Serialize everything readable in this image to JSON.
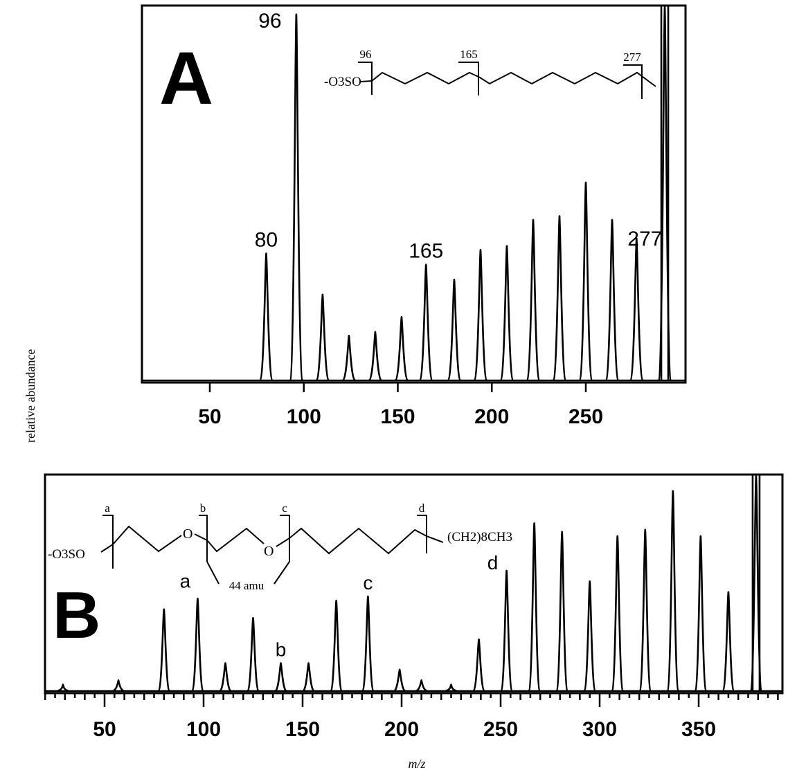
{
  "ylabel": "relative abundance",
  "xlabel": "m/z",
  "chart_data": [
    {
      "type": "line",
      "panel_label": "A",
      "xlim": [
        14,
        303
      ],
      "ylim": [
        0,
        100
      ],
      "x_ticks": [
        50,
        100,
        150,
        200,
        250
      ],
      "x_tick_labels": [
        "50",
        "100",
        "150",
        "200",
        "250"
      ],
      "grid": false,
      "peaks": [
        {
          "mz": 80,
          "abundance": 34
        },
        {
          "mz": 96,
          "abundance": 98
        },
        {
          "mz": 110,
          "abundance": 23
        },
        {
          "mz": 124,
          "abundance": 12
        },
        {
          "mz": 138,
          "abundance": 13
        },
        {
          "mz": 152,
          "abundance": 17
        },
        {
          "mz": 165,
          "abundance": 31
        },
        {
          "mz": 180,
          "abundance": 27
        },
        {
          "mz": 194,
          "abundance": 35
        },
        {
          "mz": 208,
          "abundance": 36
        },
        {
          "mz": 222,
          "abundance": 43
        },
        {
          "mz": 236,
          "abundance": 44
        },
        {
          "mz": 250,
          "abundance": 53
        },
        {
          "mz": 264,
          "abundance": 43
        },
        {
          "mz": 277,
          "abundance": 38
        },
        {
          "mz": 292,
          "abundance": 100
        }
      ],
      "annotations": [
        {
          "mz": 80,
          "text": "80"
        },
        {
          "mz": 96,
          "text": "96"
        },
        {
          "mz": 165,
          "text": "165"
        },
        {
          "mz": 277,
          "text": "277"
        }
      ],
      "structure": {
        "head": "-O3SO",
        "cleavage_labels": [
          "96",
          "165",
          "277"
        ]
      }
    },
    {
      "type": "line",
      "panel_label": "B",
      "xlim": [
        20,
        392
      ],
      "ylim": [
        0,
        100
      ],
      "x_ticks": [
        50,
        100,
        150,
        200,
        250,
        300,
        350
      ],
      "x_tick_labels": [
        "50",
        "100",
        "150",
        "200",
        "250",
        "300",
        "350"
      ],
      "minor_tick_step": 5,
      "grid": false,
      "peaks": [
        {
          "mz": 29,
          "abundance": 3
        },
        {
          "mz": 57,
          "abundance": 5
        },
        {
          "mz": 80,
          "abundance": 38
        },
        {
          "mz": 97,
          "abundance": 43
        },
        {
          "mz": 111,
          "abundance": 13
        },
        {
          "mz": 125,
          "abundance": 34
        },
        {
          "mz": 139,
          "abundance": 13
        },
        {
          "mz": 153,
          "abundance": 13
        },
        {
          "mz": 167,
          "abundance": 42
        },
        {
          "mz": 183,
          "abundance": 44
        },
        {
          "mz": 199,
          "abundance": 10
        },
        {
          "mz": 210,
          "abundance": 5
        },
        {
          "mz": 225,
          "abundance": 3
        },
        {
          "mz": 239,
          "abundance": 24
        },
        {
          "mz": 253,
          "abundance": 56
        },
        {
          "mz": 267,
          "abundance": 78
        },
        {
          "mz": 281,
          "abundance": 74
        },
        {
          "mz": 295,
          "abundance": 51
        },
        {
          "mz": 309,
          "abundance": 72
        },
        {
          "mz": 323,
          "abundance": 75
        },
        {
          "mz": 337,
          "abundance": 93
        },
        {
          "mz": 351,
          "abundance": 72
        },
        {
          "mz": 365,
          "abundance": 46
        },
        {
          "mz": 379,
          "abundance": 100
        }
      ],
      "annotations": [
        {
          "mz": 97,
          "text": "a"
        },
        {
          "mz": 139,
          "text": "b"
        },
        {
          "mz": 183,
          "text": "c"
        },
        {
          "mz": 253,
          "text": "d"
        }
      ],
      "structure": {
        "head": "-O3SO",
        "oxygen": "O",
        "tail": "(CH2)8CH3",
        "cleavage_labels": [
          "a",
          "b",
          "c",
          "d"
        ],
        "repeat_label": "44 amu"
      }
    }
  ]
}
